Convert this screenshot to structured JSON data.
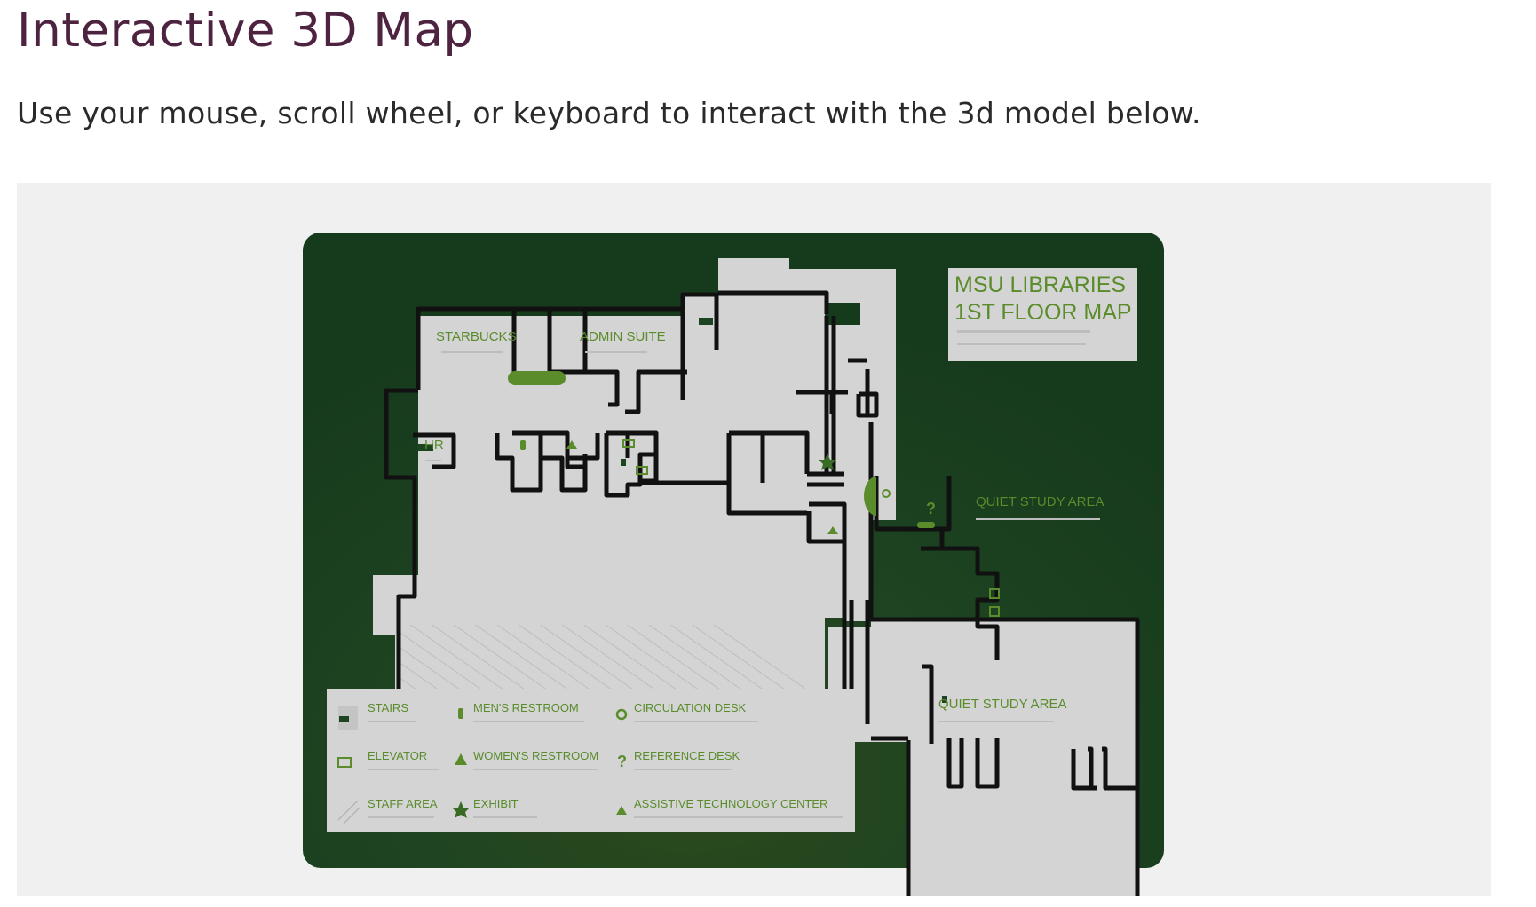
{
  "page": {
    "title": "Interactive 3D Map",
    "description": "Use your mouse, scroll wheel, or keyboard to interact with the 3d model below."
  },
  "colors": {
    "title": "#4e2340",
    "board": "#1d4420",
    "floor": "#d4d4d4",
    "wall": "#111111",
    "accent": "#5a8c2c"
  },
  "map": {
    "title_line1": "MSU LIBRARIES",
    "title_line2": "1ST FLOOR MAP",
    "rooms": {
      "starbucks": "STARBUCKS",
      "admin_suite": "ADMIN SUITE",
      "hr": "HR",
      "quiet_study_upper": "QUIET STUDY AREA",
      "quiet_study_lower": "QUIET STUDY AREA"
    },
    "map_symbols": {
      "reference": "?"
    },
    "legend": [
      {
        "icon": "stairs-icon",
        "label": "STAIRS"
      },
      {
        "icon": "mens-restroom-icon",
        "label": "MEN'S RESTROOM"
      },
      {
        "icon": "circulation-desk-icon",
        "label": "CIRCULATION DESK"
      },
      {
        "icon": "elevator-icon",
        "label": "ELEVATOR"
      },
      {
        "icon": "womens-restroom-icon",
        "label": "WOMEN'S RESTROOM"
      },
      {
        "icon": "reference-desk-icon",
        "label": "REFERENCE DESK",
        "glyph": "?"
      },
      {
        "icon": "staff-area-icon",
        "label": "STAFF AREA"
      },
      {
        "icon": "exhibit-icon",
        "label": "EXHIBIT"
      },
      {
        "icon": "assistive-technology-icon",
        "label": "ASSISTIVE TECHNOLOGY CENTER"
      }
    ]
  }
}
